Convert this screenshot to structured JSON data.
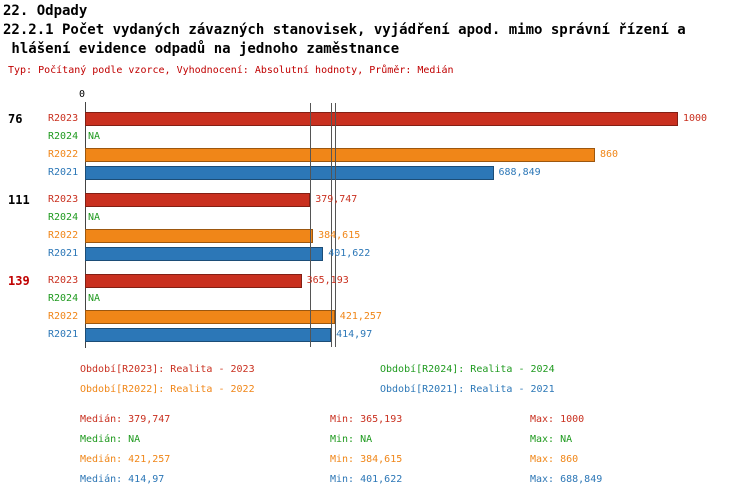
{
  "header": {
    "chapter": "22. Odpady",
    "indicator_line1": "22.2.1 Počet vydaných závazných stanovisek, vyjádření apod. mimo správní řízení a",
    "indicator_line2": " hlášení evidence odpadů na jednoho zaměstnance",
    "meta": "Typ: Počítaný podle vzorce, Vyhodnocení: Absolutní hodnoty, Průměr: Medián"
  },
  "colors": {
    "meta_red": "#C00000",
    "axis": "#444444",
    "median_line": "#555555",
    "group_label_default": "#000000",
    "group_label_highlight": "#C00000"
  },
  "series_colors": {
    "R2023": "#C9301F",
    "R2024": "#1F9A1F",
    "R2022": "#F08618",
    "R2021": "#2C77B7"
  },
  "chart_data": {
    "type": "bar",
    "orientation": "horizontal",
    "title": "22.2.1 Počet vydaných závazných stanovisek, vyjádření apod. mimo správní řízení a hlášení evidence odpadů na jednoho zaměstnance",
    "axis_origin_label": "0",
    "xlim": [
      0,
      1000
    ],
    "grid": false,
    "series_order": [
      "R2023",
      "R2024",
      "R2022",
      "R2021"
    ],
    "groups": [
      {
        "label": "76",
        "label_color": "#000000",
        "bars": [
          {
            "series": "R2023",
            "value": 1000,
            "value_label": "1000"
          },
          {
            "series": "R2024",
            "value": null,
            "value_label": "NA"
          },
          {
            "series": "R2022",
            "value": 860,
            "value_label": "860"
          },
          {
            "series": "R2021",
            "value": 688.849,
            "value_label": "688,849"
          }
        ]
      },
      {
        "label": "111",
        "label_color": "#000000",
        "bars": [
          {
            "series": "R2023",
            "value": 379.747,
            "value_label": "379,747"
          },
          {
            "series": "R2024",
            "value": null,
            "value_label": "NA"
          },
          {
            "series": "R2022",
            "value": 384.615,
            "value_label": "384,615"
          },
          {
            "series": "R2021",
            "value": 401.622,
            "value_label": "401,622"
          }
        ]
      },
      {
        "label": "139",
        "label_color": "#C00000",
        "bars": [
          {
            "series": "R2023",
            "value": 365.193,
            "value_label": "365,193"
          },
          {
            "series": "R2024",
            "value": null,
            "value_label": "NA"
          },
          {
            "series": "R2022",
            "value": 421.257,
            "value_label": "421,257"
          },
          {
            "series": "R2021",
            "value": 414.97,
            "value_label": "414,97"
          }
        ]
      }
    ],
    "median_lines": [
      {
        "series": "R2023",
        "value": 379.747
      },
      {
        "series": "R2022",
        "value": 421.257
      },
      {
        "series": "R2021",
        "value": 414.97
      }
    ]
  },
  "legend": {
    "items": [
      {
        "series": "R2023",
        "text": "Období[R2023]: Realita - 2023"
      },
      {
        "series": "R2024",
        "text": "Období[R2024]: Realita - 2024"
      },
      {
        "series": "R2022",
        "text": "Období[R2022]: Realita - 2022"
      },
      {
        "series": "R2021",
        "text": "Období[R2021]: Realita - 2021"
      }
    ]
  },
  "stats": {
    "rows": [
      {
        "series": "R2023",
        "median": "Medián: 379,747",
        "min": "Min: 365,193",
        "max": "Max: 1000"
      },
      {
        "series": "R2024",
        "median": "Medián: NA",
        "min": "Min: NA",
        "max": "Max: NA"
      },
      {
        "series": "R2022",
        "median": "Medián: 421,257",
        "min": "Min: 384,615",
        "max": "Max: 860"
      },
      {
        "series": "R2021",
        "median": "Medián: 414,97",
        "min": "Min: 401,622",
        "max": "Max: 688,849"
      }
    ]
  }
}
